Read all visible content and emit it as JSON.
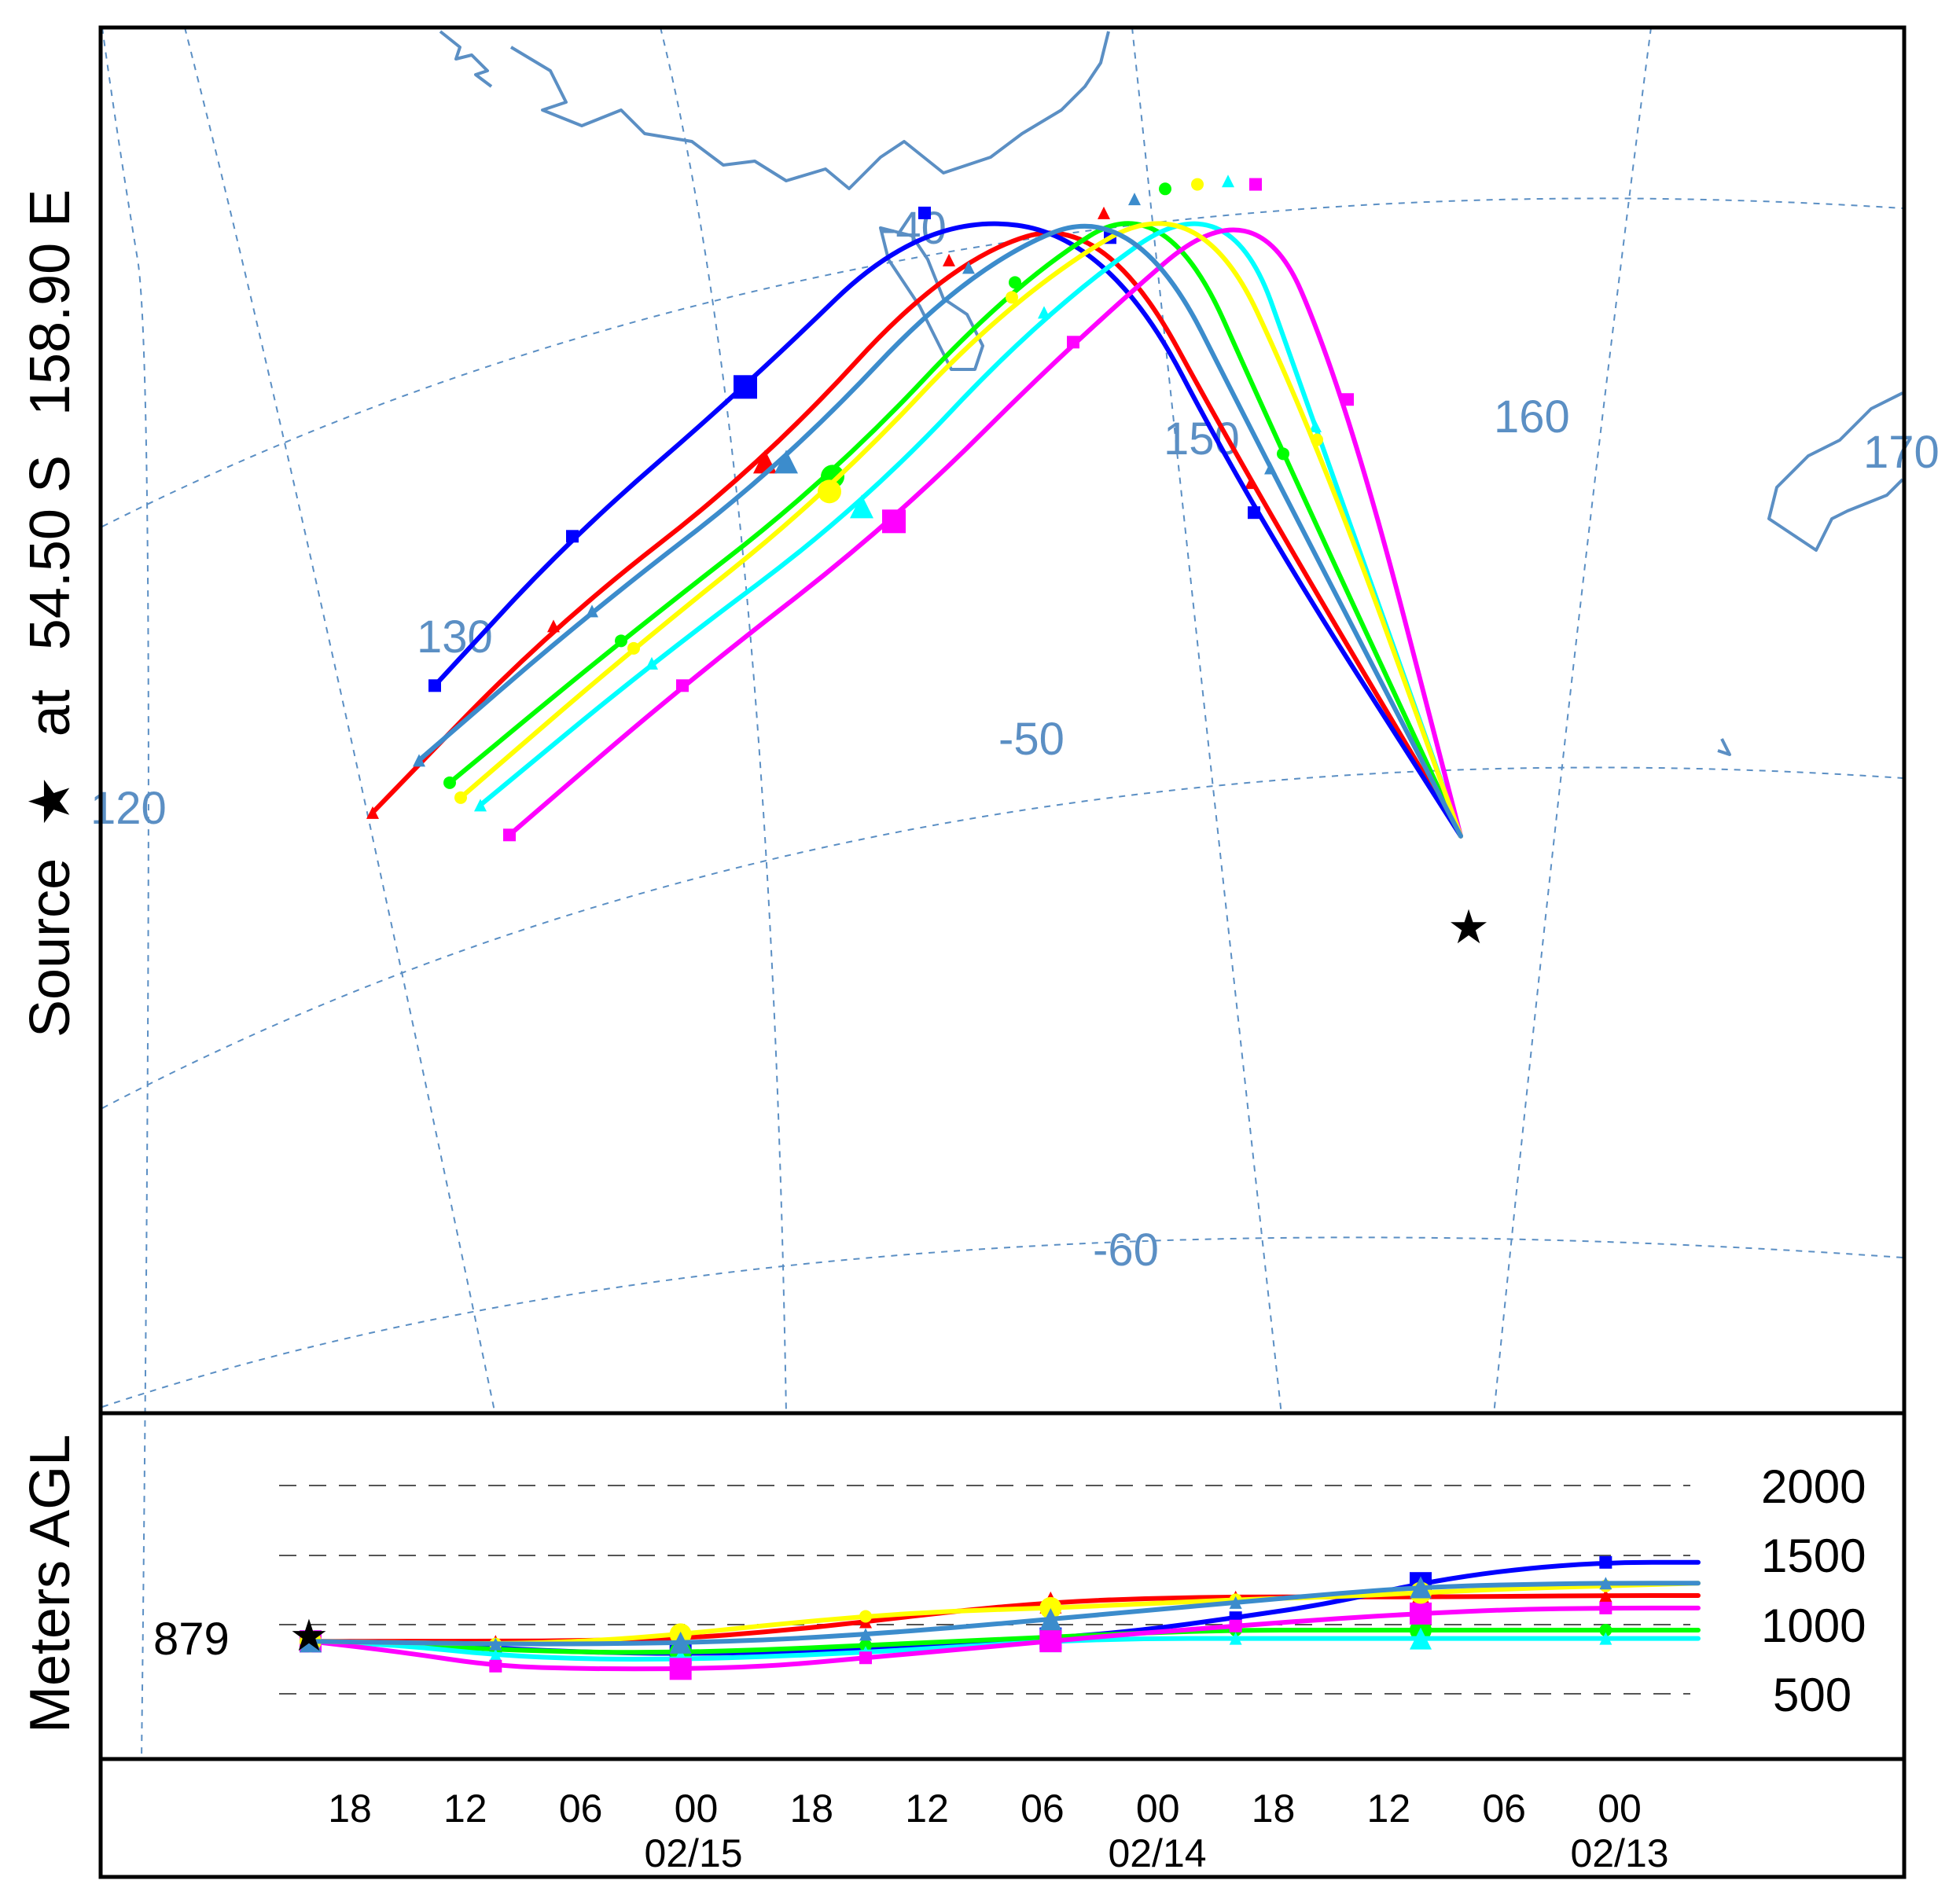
{
  "source": {
    "label_parts": [
      "Source",
      "★",
      "at",
      "54.50 S",
      "158.90 E"
    ],
    "lat_label": "54.50 S",
    "lon_label": "158.90 E",
    "start_height_label": "879"
  },
  "map": {
    "lon_labels": [
      "120",
      "130",
      "150",
      "160",
      "170"
    ],
    "lat_labels": [
      "-40",
      "-50",
      "-60"
    ],
    "grid_color": "#5b8fc4",
    "coast_color": "#5b8fc4"
  },
  "height_panel": {
    "ylabel": "Meters AGL",
    "levels": [
      "2000",
      "1500",
      "1000",
      "500"
    ]
  },
  "time_axis": {
    "hour_ticks": [
      "18",
      "12",
      "06",
      "00",
      "18",
      "12",
      "06",
      "00",
      "18",
      "12",
      "06",
      "00"
    ],
    "date_labels": [
      "02/15",
      "02/14",
      "02/13"
    ]
  },
  "colors": [
    "#ff0000",
    "#0000ff",
    "#00ff00",
    "#00ffff",
    "#ff00ff",
    "#ffff00",
    "#3c8ccc"
  ],
  "trajectories": [
    {
      "color": "#ff0000",
      "marker": "triangle",
      "pts": [
        [
          1.0,
          0.5
        ],
        [
          0.75,
          2.6
        ],
        [
          0.6,
          5.2
        ],
        [
          0.45,
          8.3
        ],
        [
          0.25,
          11.0
        ],
        [
          0.0,
          13.2
        ],
        [
          -0.2,
          15.7
        ]
      ],
      "h": [
        879,
        880,
        880,
        885,
        900,
        950,
        1020,
        1100,
        1160,
        1190,
        1200,
        1200,
        1200,
        1205,
        1210,
        1210
      ]
    },
    {
      "color": "#0000ff",
      "marker": "square",
      "pts": [
        [
          1.0,
          0.5
        ],
        [
          0.75,
          2.4
        ],
        [
          0.6,
          4.8
        ],
        [
          0.4,
          7.6
        ],
        [
          0.2,
          10.0
        ],
        [
          0.0,
          12.0
        ],
        [
          -0.15,
          14.0
        ]
      ],
      "h": [
        879,
        860,
        830,
        800,
        790,
        800,
        820,
        860,
        900,
        960,
        1050,
        1150,
        1300,
        1400,
        1450,
        1450
      ]
    },
    {
      "color": "#00ff00",
      "marker": "circle",
      "pts": [
        [
          1.0,
          0.5
        ],
        [
          0.8,
          2.8
        ],
        [
          0.7,
          5.8
        ],
        [
          0.55,
          8.6
        ],
        [
          0.35,
          11.2
        ],
        [
          0.1,
          13.4
        ],
        [
          -0.1,
          15.3
        ]
      ],
      "h": [
        879,
        860,
        820,
        800,
        800,
        820,
        850,
        880,
        910,
        940,
        960,
        960,
        960,
        960,
        960,
        960
      ]
    },
    {
      "color": "#00ffff",
      "marker": "triangle",
      "pts": [
        [
          1.0,
          0.5
        ],
        [
          0.85,
          3.0
        ],
        [
          0.8,
          6.3
        ],
        [
          0.6,
          9.0
        ],
        [
          0.4,
          11.6
        ],
        [
          0.15,
          13.7
        ],
        [
          -0.05,
          15.6
        ]
      ],
      "h": [
        879,
        850,
        780,
        750,
        750,
        770,
        800,
        840,
        880,
        900,
        900,
        900,
        900,
        900,
        900,
        900
      ]
    },
    {
      "color": "#ff00ff",
      "marker": "square",
      "pts": [
        [
          1.0,
          0.5
        ],
        [
          0.9,
          3.2
        ],
        [
          0.85,
          6.8
        ],
        [
          0.65,
          9.4
        ],
        [
          0.45,
          11.8
        ],
        [
          0.2,
          14.0
        ],
        [
          0.0,
          16.0
        ]
      ],
      "h": [
        879,
        800,
        700,
        680,
        680,
        700,
        760,
        820,
        880,
        940,
        990,
        1040,
        1080,
        1110,
        1120,
        1120
      ]
    },
    {
      "color": "#ffff00",
      "marker": "circle",
      "pts": [
        [
          1.0,
          0.5
        ],
        [
          0.85,
          2.9
        ],
        [
          0.75,
          6.0
        ],
        [
          0.55,
          8.8
        ],
        [
          0.35,
          11.4
        ],
        [
          0.12,
          13.5
        ],
        [
          -0.08,
          15.5
        ]
      ],
      "h": [
        879,
        870,
        860,
        880,
        930,
        1000,
        1060,
        1100,
        1120,
        1150,
        1180,
        1200,
        1230,
        1260,
        1280,
        1300
      ]
    },
    {
      "color": "#3c8ccc",
      "marker": "triangle",
      "pts": [
        [
          1.0,
          0.5
        ],
        [
          0.78,
          2.7
        ],
        [
          0.65,
          5.5
        ],
        [
          0.48,
          8.4
        ],
        [
          0.28,
          11.0
        ],
        [
          0.05,
          13.0
        ],
        [
          -0.15,
          15.0
        ]
      ],
      "h": [
        879,
        870,
        860,
        860,
        870,
        890,
        930,
        980,
        1040,
        1100,
        1160,
        1220,
        1270,
        1290,
        1300,
        1300
      ]
    }
  ]
}
